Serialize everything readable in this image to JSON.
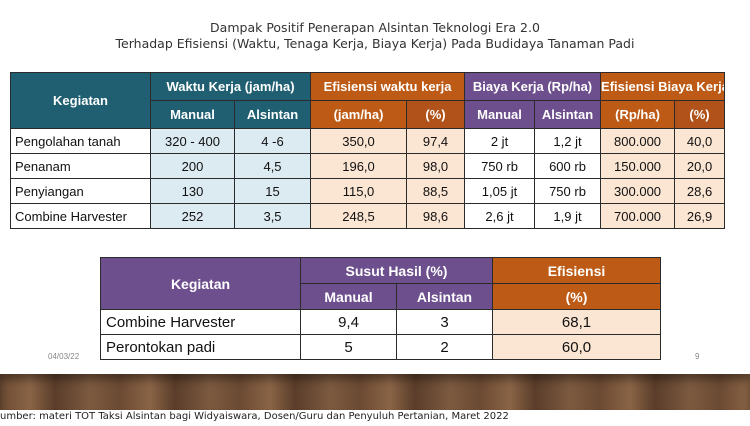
{
  "title": {
    "line1": "Dampak Positif Penerapan Alsintan Teknologi Era 2.0",
    "line2": "Terhadap Efisiensi (Waktu, Tenaga Kerja, Biaya Kerja) Pada Budidaya Tanaman Padi"
  },
  "table1": {
    "headers": {
      "kegiatan": "Kegiatan",
      "waktu_kerja": "Waktu Kerja (jam/ha)",
      "efisiensi_waktu": "Efisiensi waktu kerja",
      "biaya_kerja": "Biaya Kerja (Rp/ha)",
      "efisiensi_biaya": "Efisiensi Biaya Kerja",
      "manual": "Manual",
      "alsintan": "Alsintan",
      "jam_ha": "(jam/ha)",
      "persen": "(%)",
      "manual2": "Manual",
      "alsintan2": "Alsintan",
      "rp_ha": "(Rp/ha)",
      "persen2": "(%)"
    },
    "rows": [
      [
        "Pengolahan tanah",
        "320 - 400",
        "4 -6",
        "350,0",
        "97,4",
        "2 jt",
        "1,2 jt",
        "800.000",
        "40,0"
      ],
      [
        "Penanam",
        "200",
        "4,5",
        "196,0",
        "98,0",
        "750 rb",
        "600 rb",
        "150.000",
        "20,0"
      ],
      [
        "Penyiangan",
        "130",
        "15",
        "115,0",
        "88,5",
        "1,05 jt",
        "750 rb",
        "300.000",
        "28,6"
      ],
      [
        "Combine Harvester",
        "252",
        "3,5",
        "248,5",
        "98,6",
        "2,6 jt",
        "1,9 jt",
        "700.000",
        "26,9"
      ]
    ]
  },
  "table2": {
    "headers": {
      "kegiatan": "Kegiatan",
      "susut": "Susut Hasil (%)",
      "efisiensi": "Efisiensi",
      "manual": "Manual",
      "alsintan": "Alsintan",
      "persen": "(%)"
    },
    "rows": [
      [
        "Combine Harvester",
        "9,4",
        "3",
        "68,1"
      ],
      [
        "Perontokan padi",
        "5",
        "2",
        "60,0"
      ]
    ]
  },
  "footer": {
    "date": "04/03/22",
    "page": "9",
    "source": "umber:  materi TOT Taksi Alsintan bagi Widyaiswara, Dosen/Guru dan Penyuluh Pertanian, Maret 2022"
  },
  "colors": {
    "header_teal": "#1f5f71",
    "header_orange": "#bd5b16",
    "header_purple": "#6d4f8d",
    "cell_blue": "#dceaf2",
    "cell_peach": "#fbe5d3",
    "cell_lavender": "#e6e0ee"
  }
}
